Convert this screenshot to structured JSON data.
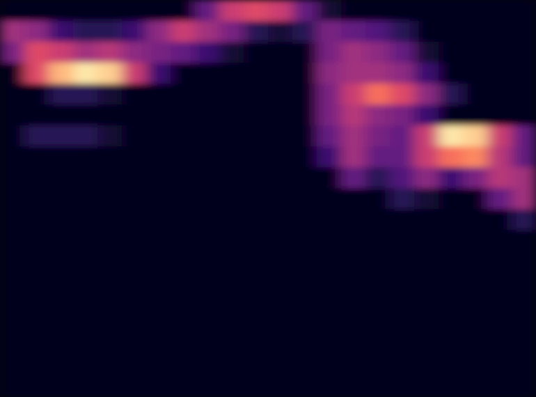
{
  "chart_data": {
    "type": "heatmap",
    "tick_labels": false,
    "color_range": [
      0,
      1
    ],
    "cells": [
      [
        0.05,
        0.05,
        0.05,
        0.05,
        0.05,
        0.05,
        0.05,
        0.05,
        0.3,
        0.55,
        0.6,
        0.55,
        0.3,
        0.1,
        0.05,
        0.05,
        0.05,
        0.05,
        0.05,
        0.05,
        0.05,
        0.05
      ],
      [
        0.45,
        0.4,
        0.2,
        0.15,
        0.15,
        0.2,
        0.4,
        0.55,
        0.45,
        0.35,
        0.15,
        0.1,
        0.15,
        0.35,
        0.3,
        0.25,
        0.15,
        0.05,
        0.05,
        0.05,
        0.05,
        0.05
      ],
      [
        0.35,
        0.6,
        0.55,
        0.45,
        0.5,
        0.4,
        0.35,
        0.3,
        0.2,
        0.1,
        0.05,
        0.05,
        0.05,
        0.35,
        0.45,
        0.4,
        0.3,
        0.1,
        0.05,
        0.05,
        0.05,
        0.05
      ],
      [
        0.05,
        0.6,
        0.85,
        0.95,
        0.9,
        0.55,
        0.2,
        0.05,
        0.05,
        0.05,
        0.05,
        0.05,
        0.05,
        0.4,
        0.45,
        0.45,
        0.4,
        0.2,
        0.05,
        0.05,
        0.05,
        0.05
      ],
      [
        0.05,
        0.05,
        0.15,
        0.15,
        0.1,
        0.05,
        0.05,
        0.05,
        0.05,
        0.05,
        0.05,
        0.05,
        0.05,
        0.35,
        0.55,
        0.7,
        0.6,
        0.4,
        0.15,
        0.05,
        0.05,
        0.05
      ],
      [
        0.05,
        0.05,
        0.05,
        0.05,
        0.05,
        0.05,
        0.05,
        0.05,
        0.05,
        0.05,
        0.05,
        0.05,
        0.05,
        0.35,
        0.5,
        0.4,
        0.35,
        0.2,
        0.05,
        0.05,
        0.05,
        0.05
      ],
      [
        0.05,
        0.15,
        0.15,
        0.15,
        0.1,
        0.05,
        0.05,
        0.05,
        0.05,
        0.05,
        0.05,
        0.05,
        0.05,
        0.3,
        0.45,
        0.35,
        0.3,
        0.55,
        0.95,
        0.9,
        0.55,
        0.3
      ],
      [
        0.05,
        0.05,
        0.05,
        0.05,
        0.05,
        0.05,
        0.05,
        0.05,
        0.05,
        0.05,
        0.05,
        0.05,
        0.05,
        0.2,
        0.45,
        0.3,
        0.3,
        0.55,
        0.7,
        0.75,
        0.5,
        0.3
      ],
      [
        0.05,
        0.05,
        0.05,
        0.05,
        0.05,
        0.05,
        0.05,
        0.05,
        0.05,
        0.05,
        0.05,
        0.05,
        0.05,
        0.05,
        0.3,
        0.15,
        0.25,
        0.4,
        0.2,
        0.35,
        0.5,
        0.45
      ],
      [
        0.05,
        0.05,
        0.05,
        0.05,
        0.05,
        0.05,
        0.05,
        0.05,
        0.05,
        0.05,
        0.05,
        0.05,
        0.05,
        0.05,
        0.05,
        0.05,
        0.15,
        0.1,
        0.05,
        0.05,
        0.3,
        0.45
      ],
      [
        0.05,
        0.05,
        0.05,
        0.05,
        0.05,
        0.05,
        0.05,
        0.05,
        0.05,
        0.05,
        0.05,
        0.05,
        0.05,
        0.05,
        0.05,
        0.05,
        0.05,
        0.05,
        0.05,
        0.05,
        0.05,
        0.15
      ],
      [
        0.05,
        0.05,
        0.05,
        0.05,
        0.05,
        0.05,
        0.05,
        0.05,
        0.05,
        0.05,
        0.05,
        0.05,
        0.05,
        0.05,
        0.05,
        0.05,
        0.05,
        0.05,
        0.05,
        0.05,
        0.05,
        0.05
      ],
      [
        0.05,
        0.05,
        0.05,
        0.05,
        0.05,
        0.05,
        0.05,
        0.05,
        0.05,
        0.05,
        0.05,
        0.05,
        0.05,
        0.05,
        0.05,
        0.05,
        0.05,
        0.05,
        0.05,
        0.05,
        0.05,
        0.05
      ],
      [
        0.05,
        0.05,
        0.05,
        0.05,
        0.05,
        0.05,
        0.05,
        0.05,
        0.05,
        0.05,
        0.05,
        0.05,
        0.05,
        0.05,
        0.05,
        0.05,
        0.05,
        0.05,
        0.05,
        0.05,
        0.05,
        0.05
      ],
      [
        0.05,
        0.05,
        0.05,
        0.05,
        0.05,
        0.05,
        0.05,
        0.05,
        0.05,
        0.05,
        0.05,
        0.05,
        0.05,
        0.05,
        0.05,
        0.05,
        0.05,
        0.05,
        0.05,
        0.05,
        0.05,
        0.05
      ],
      [
        0.05,
        0.05,
        0.05,
        0.05,
        0.05,
        0.05,
        0.05,
        0.05,
        0.05,
        0.05,
        0.05,
        0.05,
        0.05,
        0.05,
        0.05,
        0.05,
        0.05,
        0.05,
        0.05,
        0.05,
        0.05,
        0.05
      ],
      [
        0.05,
        0.05,
        0.05,
        0.05,
        0.05,
        0.05,
        0.05,
        0.05,
        0.05,
        0.05,
        0.05,
        0.05,
        0.05,
        0.05,
        0.05,
        0.05,
        0.05,
        0.05,
        0.05,
        0.05,
        0.05,
        0.05
      ],
      [
        0.05,
        0.05,
        0.05,
        0.05,
        0.05,
        0.05,
        0.05,
        0.05,
        0.05,
        0.05,
        0.05,
        0.05,
        0.05,
        0.05,
        0.05,
        0.05,
        0.05,
        0.05,
        0.05,
        0.05,
        0.05,
        0.05
      ],
      [
        0.05,
        0.05,
        0.05,
        0.05,
        0.05,
        0.05,
        0.05,
        0.05,
        0.05,
        0.05,
        0.05,
        0.05,
        0.05,
        0.05,
        0.05,
        0.05,
        0.05,
        0.05,
        0.05,
        0.05,
        0.05,
        0.05
      ]
    ]
  }
}
